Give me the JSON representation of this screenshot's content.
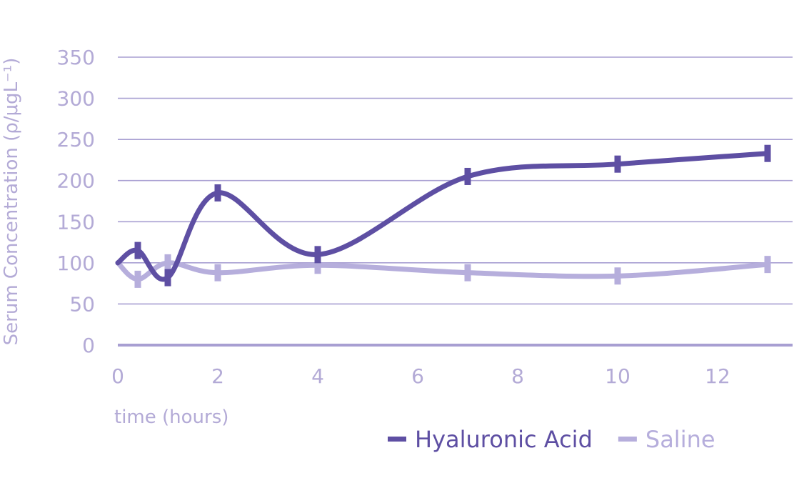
{
  "chart_data": {
    "type": "line",
    "title": "",
    "xlabel": "time (hours)",
    "ylabel": "Serum Concentration (ρ/μgL⁻¹)",
    "xlim": [
      0,
      13.5
    ],
    "ylim": [
      0,
      350
    ],
    "x_ticks": [
      0,
      2,
      4,
      6,
      8,
      10,
      12
    ],
    "y_ticks": [
      0,
      50,
      100,
      150,
      200,
      250,
      300,
      350
    ],
    "grid": "horizontal",
    "legend": "bottom-right",
    "series": [
      {
        "name": "Hyaluronic Acid",
        "color": "#5e4fa3",
        "x": [
          0,
          0.4,
          1,
          2,
          4,
          7,
          10,
          13
        ],
        "y": [
          100,
          115,
          82,
          185,
          110,
          205,
          220,
          233
        ]
      },
      {
        "name": "Saline",
        "color": "#b6aedc",
        "x": [
          0,
          0.4,
          1,
          2,
          4,
          7,
          10,
          13
        ],
        "y": [
          100,
          80,
          100,
          88,
          97,
          88,
          84,
          98
        ]
      }
    ]
  }
}
